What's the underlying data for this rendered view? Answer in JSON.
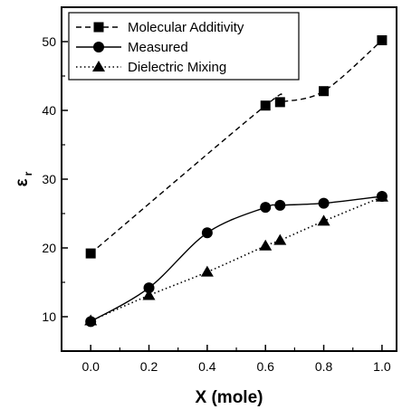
{
  "chart_data": {
    "type": "line",
    "xlabel": "X (mole)",
    "ylabel_symbol": "ε",
    "ylabel_sub": "r",
    "xlim": [
      -0.1,
      1.05
    ],
    "ylim": [
      5,
      55
    ],
    "xticks": [
      0.0,
      0.2,
      0.4,
      0.6,
      0.8,
      1.0
    ],
    "xtick_labels": [
      "0.0",
      "0.2",
      "0.4",
      "0.6",
      "0.8",
      "1.0"
    ],
    "yticks": [
      10,
      20,
      30,
      40,
      50
    ],
    "ytick_labels": [
      "10",
      "20",
      "30",
      "40",
      "50"
    ],
    "legend_position": "top-left",
    "grid": false,
    "series": [
      {
        "name": "Molecular Additivity",
        "marker": "square",
        "line": "dashed",
        "x": [
          0.0,
          0.6,
          0.65,
          0.8,
          1.0
        ],
        "y": [
          19.2,
          40.7,
          41.2,
          42.8,
          50.2
        ]
      },
      {
        "name": "Measured",
        "marker": "circle",
        "line": "solid",
        "x": [
          0.0,
          0.2,
          0.4,
          0.6,
          0.65,
          0.8,
          1.0
        ],
        "y": [
          9.3,
          14.2,
          22.2,
          25.9,
          26.2,
          26.5,
          27.5
        ]
      },
      {
        "name": "Dielectric Mixing",
        "marker": "triangle",
        "line": "dotted",
        "x": [
          0.0,
          0.2,
          0.4,
          0.6,
          0.65,
          0.8,
          1.0
        ],
        "y": [
          9.4,
          13.1,
          16.5,
          20.3,
          21.1,
          23.9,
          27.4
        ]
      }
    ]
  }
}
